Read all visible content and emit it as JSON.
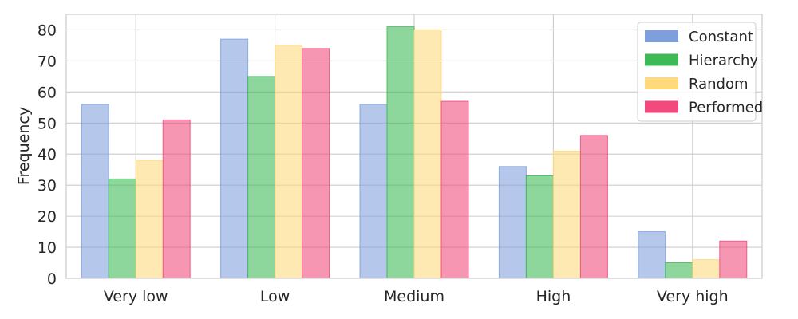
{
  "chart_data": {
    "type": "bar",
    "title": "",
    "xlabel": "",
    "ylabel": "Frequency",
    "categories": [
      "Very low",
      "Low",
      "Medium",
      "High",
      "Very high"
    ],
    "ylim": [
      0,
      85
    ],
    "yticks": [
      0,
      10,
      20,
      30,
      40,
      50,
      60,
      70,
      80
    ],
    "grid": true,
    "legend_position": "top-right",
    "series": [
      {
        "name": "Constant",
        "color": "#7f9fdc",
        "values": [
          56,
          77,
          56,
          36,
          15
        ]
      },
      {
        "name": "Hierarchy",
        "color": "#3dba55",
        "values": [
          32,
          65,
          81,
          33,
          5
        ]
      },
      {
        "name": "Random",
        "color": "#ffd97a",
        "values": [
          38,
          75,
          80,
          41,
          6
        ]
      },
      {
        "name": "Performed",
        "color": "#f24a7c",
        "values": [
          51,
          74,
          57,
          46,
          12
        ]
      }
    ]
  }
}
